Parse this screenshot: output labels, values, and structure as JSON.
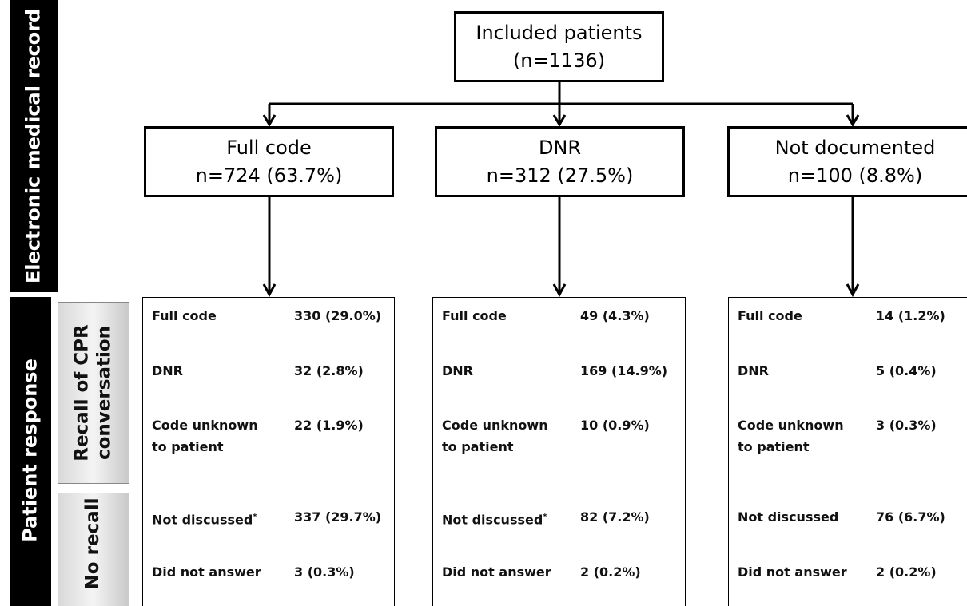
{
  "sidebar": {
    "top": "Electronic medical record",
    "bottom": "Patient response",
    "groups": [
      [
        "Recall of CPR",
        "conversation"
      ],
      [
        "No recall"
      ]
    ]
  },
  "root": {
    "title": "Included patients",
    "count": "(n=1136)"
  },
  "branches": [
    {
      "title": "Full code",
      "count": "n=724 (63.7%)",
      "rows": [
        {
          "label": [
            "Full code"
          ],
          "value": "330 (29.0%)"
        },
        {
          "label": [
            "DNR"
          ],
          "value": "32 (2.8%)"
        },
        {
          "label": [
            "Code unknown",
            "to patient"
          ],
          "value": "22 (1.9%)"
        },
        {
          "label": [
            "Not discussed"
          ],
          "mark": "*",
          "value": "337 (29.7%)"
        },
        {
          "label": [
            "Did not answer"
          ],
          "value": "3 (0.3%)"
        }
      ]
    },
    {
      "title": "DNR",
      "count": "n=312 (27.5%)",
      "rows": [
        {
          "label": [
            "Full code"
          ],
          "value": "49 (4.3%)"
        },
        {
          "label": [
            "DNR"
          ],
          "value": "169 (14.9%)"
        },
        {
          "label": [
            "Code unknown",
            "to patient"
          ],
          "value": "10 (0.9%)"
        },
        {
          "label": [
            "Not discussed"
          ],
          "mark": "*",
          "value": "82 (7.2%)"
        },
        {
          "label": [
            "Did not answer"
          ],
          "value": "2 (0.2%)"
        }
      ]
    },
    {
      "title": "Not documented",
      "count": "n=100 (8.8%)",
      "rows": [
        {
          "label": [
            "Full code"
          ],
          "value": "14 (1.2%)"
        },
        {
          "label": [
            "DNR"
          ],
          "value": "5 (0.4%)"
        },
        {
          "label": [
            "Code unknown",
            "to patient"
          ],
          "value": "3 (0.3%)"
        },
        {
          "label": [
            "Not discussed"
          ],
          "value": "76 (6.7%)"
        },
        {
          "label": [
            "Did not answer"
          ],
          "value": "2 (0.2%)"
        }
      ]
    }
  ]
}
